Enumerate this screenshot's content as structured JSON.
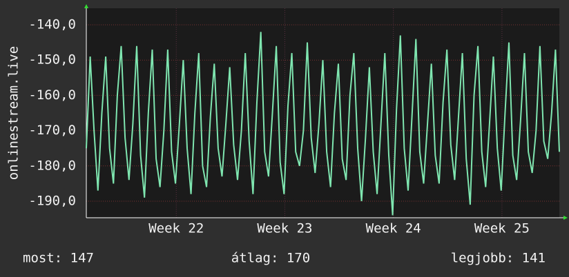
{
  "chart_data": {
    "type": "line",
    "ylabel": "onlinestream.live",
    "xlim": [
      0,
      30.5
    ],
    "ylim": [
      -194.7,
      -135.3
    ],
    "xticks": [
      {
        "value": 5.8,
        "label": "Week 22"
      },
      {
        "value": 12.8,
        "label": "Week 23"
      },
      {
        "value": 19.8,
        "label": "Week 24"
      },
      {
        "value": 26.8,
        "label": "Week 25"
      }
    ],
    "yticks": [
      {
        "value": -140,
        "label": "-140,0"
      },
      {
        "value": -150,
        "label": "-150,0"
      },
      {
        "value": -160,
        "label": "-160,0"
      },
      {
        "value": -170,
        "label": "-170,0"
      },
      {
        "value": -180,
        "label": "-180,0"
      },
      {
        "value": -190,
        "label": "-190,0"
      }
    ],
    "grid": true,
    "x": [
      0,
      0.25,
      0.5,
      0.75,
      1,
      1.25,
      1.5,
      1.75,
      2,
      2.25,
      2.5,
      2.75,
      3,
      3.25,
      3.5,
      3.75,
      4,
      4.25,
      4.5,
      4.75,
      5,
      5.25,
      5.5,
      5.75,
      6,
      6.25,
      6.5,
      6.75,
      7,
      7.25,
      7.5,
      7.75,
      8,
      8.25,
      8.5,
      8.75,
      9,
      9.25,
      9.5,
      9.75,
      10,
      10.25,
      10.5,
      10.75,
      11,
      11.25,
      11.5,
      11.75,
      12,
      12.25,
      12.5,
      12.75,
      13,
      13.25,
      13.5,
      13.75,
      14,
      14.25,
      14.5,
      14.75,
      15,
      15.25,
      15.5,
      15.75,
      16,
      16.25,
      16.5,
      16.75,
      17,
      17.25,
      17.5,
      17.75,
      18,
      18.25,
      18.5,
      18.75,
      19,
      19.25,
      19.5,
      19.75,
      20,
      20.25,
      20.5,
      20.75,
      21,
      21.25,
      21.5,
      21.75,
      22,
      22.25,
      22.5,
      22.75,
      23,
      23.25,
      23.5,
      23.75,
      24,
      24.25,
      24.5,
      24.75,
      25,
      25.25,
      25.5,
      25.75,
      26,
      26.25,
      26.5,
      26.75,
      27,
      27.25,
      27.5,
      27.75,
      28,
      28.25,
      28.5,
      28.75,
      29,
      29.25,
      29.5,
      29.75,
      30,
      30.25,
      30.5
    ],
    "series": [
      {
        "color": "#7fe6b0",
        "values": [
          -175,
          -149,
          -170,
          -187,
          -165,
          -149,
          -175,
          -185,
          -160,
          -146,
          -172,
          -184,
          -168,
          -146,
          -177,
          -189,
          -165,
          -147,
          -178,
          -186,
          -170,
          -147,
          -176,
          -185,
          -168,
          -150,
          -175,
          -188,
          -165,
          -148,
          -180,
          -186,
          -166,
          -151,
          -175,
          -183,
          -168,
          -152,
          -174,
          -184,
          -170,
          -148,
          -173,
          -188,
          -162,
          -142,
          -176,
          -183,
          -165,
          -146,
          -179,
          -188,
          -163,
          -148,
          -176,
          -180,
          -170,
          -145,
          -172,
          -182,
          -168,
          -150,
          -176,
          -186,
          -165,
          -151,
          -178,
          -184,
          -160,
          -148,
          -175,
          -190,
          -172,
          -152,
          -176,
          -188,
          -168,
          -148,
          -177,
          -194,
          -164,
          -143,
          -175,
          -187,
          -166,
          -144,
          -176,
          -185,
          -168,
          -151,
          -177,
          -185,
          -162,
          -147,
          -174,
          -184,
          -166,
          -148,
          -178,
          -191,
          -160,
          -146,
          -176,
          -186,
          -168,
          -149,
          -175,
          -187,
          -165,
          -145,
          -177,
          -184,
          -167,
          -148,
          -176,
          -182,
          -170,
          -146,
          -173,
          -178,
          -165,
          -147,
          -176
        ]
      }
    ],
    "footer": [
      "most: 147",
      "átlag: 170",
      "legjobb: 141"
    ]
  }
}
